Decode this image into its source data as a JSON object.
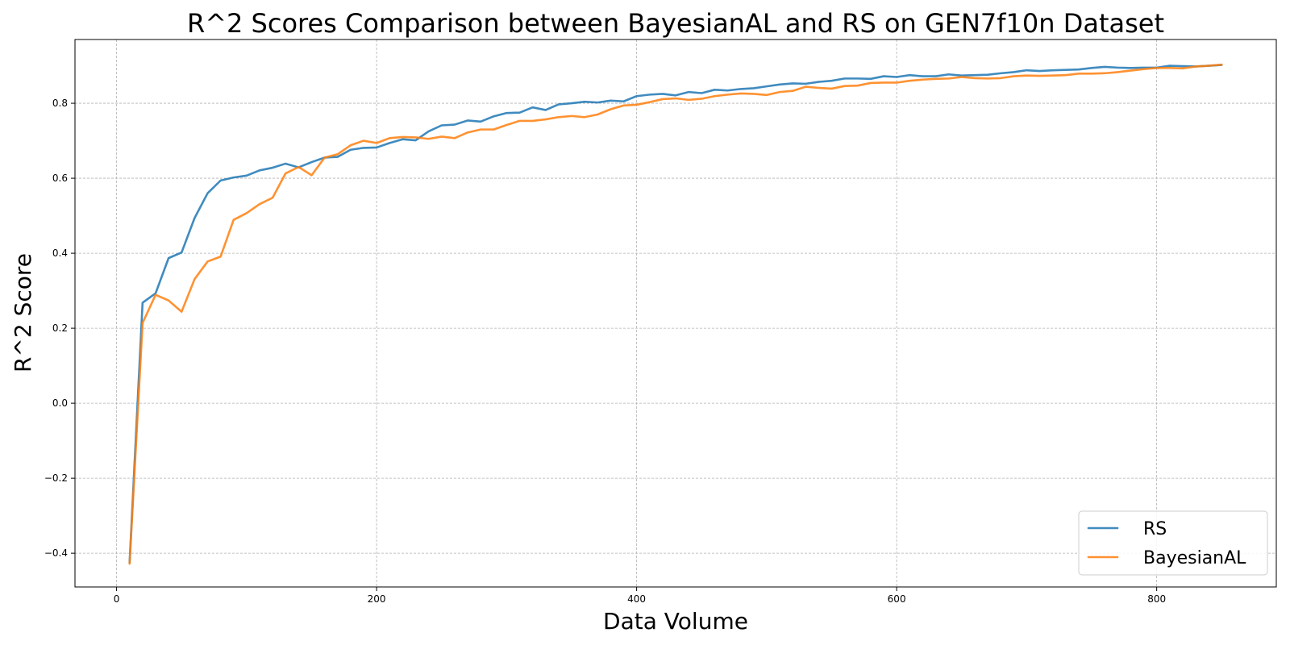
{
  "chart_data": {
    "type": "line",
    "title": "R^2 Scores Comparison between BayesianAL and RS on GEN7f10n Dataset",
    "xlabel": "Data Volume",
    "ylabel": "R^2 Score",
    "xlim": [
      -32,
      892
    ],
    "ylim": [
      -0.49,
      0.97
    ],
    "xticks": [
      0,
      200,
      400,
      600,
      800
    ],
    "yticks": [
      -0.4,
      -0.2,
      0.0,
      0.2,
      0.4,
      0.6,
      0.8
    ],
    "xtick_labels": [
      "0",
      "200",
      "400",
      "600",
      "800"
    ],
    "ytick_labels": [
      "−0.4",
      "−0.2",
      "0.0",
      "0.2",
      "0.4",
      "0.6",
      "0.8"
    ],
    "grid": true,
    "legend_position": "bottom-right",
    "x": [
      10,
      20,
      30,
      40,
      50,
      60,
      70,
      80,
      90,
      100,
      110,
      120,
      130,
      140,
      150,
      160,
      170,
      180,
      190,
      200,
      210,
      220,
      230,
      240,
      250,
      260,
      270,
      280,
      290,
      300,
      310,
      320,
      330,
      340,
      350,
      360,
      370,
      380,
      390,
      400,
      410,
      420,
      430,
      440,
      450,
      460,
      470,
      480,
      490,
      500,
      510,
      520,
      530,
      540,
      550,
      560,
      570,
      580,
      590,
      600,
      610,
      620,
      630,
      640,
      650,
      660,
      670,
      680,
      690,
      700,
      710,
      720,
      730,
      740,
      750,
      760,
      770,
      780,
      790,
      800,
      810,
      820,
      830,
      840,
      850
    ],
    "series": [
      {
        "name": "RS",
        "color": "#1f77b4",
        "values": [
          -0.425,
          0.268,
          0.293,
          0.387,
          0.402,
          0.494,
          0.56,
          0.594,
          0.602,
          0.607,
          0.621,
          0.628,
          0.639,
          0.629,
          0.643,
          0.655,
          0.657,
          0.676,
          0.681,
          0.682,
          0.694,
          0.704,
          0.701,
          0.725,
          0.741,
          0.743,
          0.754,
          0.751,
          0.765,
          0.774,
          0.775,
          0.789,
          0.782,
          0.797,
          0.8,
          0.804,
          0.802,
          0.807,
          0.805,
          0.819,
          0.823,
          0.825,
          0.821,
          0.83,
          0.827,
          0.836,
          0.834,
          0.838,
          0.84,
          0.845,
          0.85,
          0.853,
          0.852,
          0.857,
          0.86,
          0.866,
          0.866,
          0.865,
          0.872,
          0.87,
          0.875,
          0.872,
          0.872,
          0.877,
          0.874,
          0.875,
          0.876,
          0.88,
          0.883,
          0.888,
          0.886,
          0.888,
          0.889,
          0.89,
          0.894,
          0.897,
          0.895,
          0.894,
          0.895,
          0.895,
          0.9,
          0.899,
          0.898,
          0.9,
          0.902
        ]
      },
      {
        "name": "BayesianAL",
        "color": "#ff7f0e",
        "values": [
          -0.428,
          0.214,
          0.289,
          0.274,
          0.244,
          0.331,
          0.378,
          0.391,
          0.489,
          0.507,
          0.531,
          0.548,
          0.613,
          0.63,
          0.608,
          0.655,
          0.664,
          0.688,
          0.7,
          0.694,
          0.707,
          0.71,
          0.709,
          0.705,
          0.711,
          0.707,
          0.722,
          0.73,
          0.73,
          0.742,
          0.753,
          0.753,
          0.757,
          0.763,
          0.766,
          0.763,
          0.77,
          0.784,
          0.794,
          0.796,
          0.803,
          0.811,
          0.813,
          0.809,
          0.812,
          0.819,
          0.823,
          0.826,
          0.825,
          0.822,
          0.83,
          0.833,
          0.844,
          0.841,
          0.839,
          0.846,
          0.847,
          0.854,
          0.855,
          0.855,
          0.86,
          0.863,
          0.865,
          0.866,
          0.87,
          0.867,
          0.866,
          0.867,
          0.872,
          0.874,
          0.873,
          0.874,
          0.875,
          0.879,
          0.879,
          0.88,
          0.883,
          0.887,
          0.891,
          0.894,
          0.894,
          0.893,
          0.898,
          0.9,
          0.903
        ]
      }
    ]
  }
}
